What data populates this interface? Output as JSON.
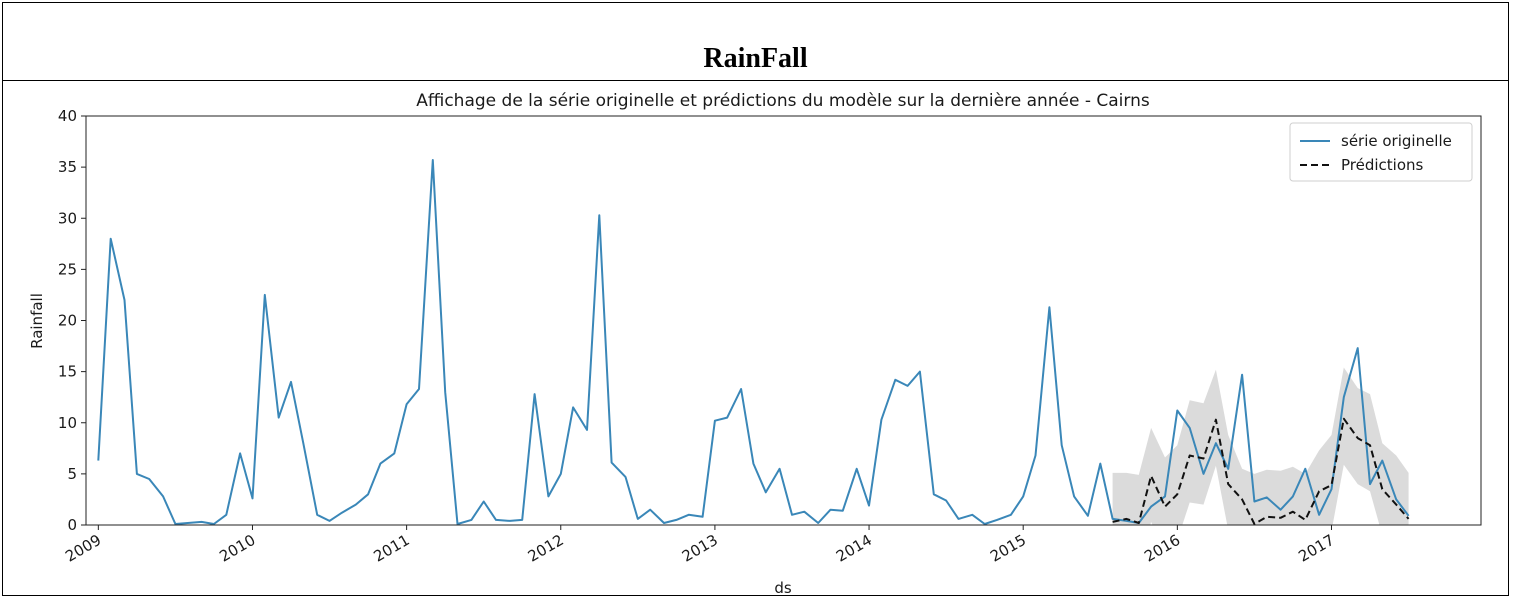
{
  "page": {
    "heading": "RainFall"
  },
  "chart_data": {
    "type": "line",
    "title": "Affichage de la série originelle et prédictions du modèle sur la dernière année - Cairns",
    "xlabel": "ds",
    "ylabel": "Rainfall",
    "ylim": [
      0,
      40
    ],
    "xlim": [
      2008.92,
      2017.97
    ],
    "yticks": [
      0,
      5,
      10,
      15,
      20,
      25,
      30,
      35,
      40
    ],
    "xticks": [
      2009,
      2010,
      2011,
      2012,
      2013,
      2014,
      2015,
      2016,
      2017
    ],
    "xtick_labels": [
      "2009",
      "2010",
      "2011",
      "2012",
      "2013",
      "2014",
      "2015",
      "2016",
      "2017"
    ],
    "legend_position": "top-right",
    "grid": false,
    "colors": {
      "original": "#3a87b8",
      "prediction": "#111111",
      "band": "#bdbdbd"
    },
    "series": [
      {
        "name": "série originelle",
        "style": "solid",
        "x": [
          2009.0,
          2009.08,
          2009.17,
          2009.25,
          2009.33,
          2009.42,
          2009.5,
          2009.58,
          2009.67,
          2009.75,
          2009.83,
          2009.92,
          2010.0,
          2010.08,
          2010.17,
          2010.25,
          2010.33,
          2010.42,
          2010.5,
          2010.58,
          2010.67,
          2010.75,
          2010.83,
          2010.92,
          2011.0,
          2011.08,
          2011.17,
          2011.25,
          2011.33,
          2011.42,
          2011.5,
          2011.58,
          2011.67,
          2011.75,
          2011.83,
          2011.92,
          2012.0,
          2012.08,
          2012.17,
          2012.25,
          2012.33,
          2012.42,
          2012.5,
          2012.58,
          2012.67,
          2012.75,
          2012.83,
          2012.92,
          2013.0,
          2013.08,
          2013.17,
          2013.25,
          2013.33,
          2013.42,
          2013.5,
          2013.58,
          2013.67,
          2013.75,
          2013.83,
          2013.92,
          2014.0,
          2014.08,
          2014.17,
          2014.25,
          2014.33,
          2014.42,
          2014.5,
          2014.58,
          2014.67,
          2014.75,
          2014.83,
          2014.92,
          2015.0,
          2015.08,
          2015.17,
          2015.25,
          2015.33,
          2015.42,
          2015.5,
          2015.58,
          2015.67,
          2015.75,
          2015.83,
          2015.92,
          2016.0,
          2016.08,
          2016.17,
          2016.25,
          2016.33,
          2016.42,
          2016.5,
          2016.58,
          2016.67,
          2016.75,
          2016.83,
          2016.92,
          2017.0,
          2017.08,
          2017.17,
          2017.25,
          2017.33,
          2017.42,
          2017.5
        ],
        "values": [
          6.3,
          28.0,
          22.0,
          5.0,
          4.5,
          2.8,
          0.1,
          0.2,
          0.3,
          0.1,
          1.0,
          7.0,
          2.6,
          22.5,
          10.5,
          14.0,
          8.0,
          1.0,
          0.4,
          1.2,
          2.0,
          3.0,
          6.0,
          7.0,
          11.8,
          13.3,
          35.7,
          13.0,
          0.1,
          0.5,
          2.3,
          0.5,
          0.4,
          0.5,
          12.8,
          2.8,
          5.0,
          11.5,
          9.3,
          30.3,
          6.1,
          4.7,
          0.6,
          1.5,
          0.2,
          0.5,
          1.0,
          0.8,
          10.2,
          10.5,
          13.3,
          6.0,
          3.2,
          5.5,
          1.0,
          1.3,
          0.2,
          1.5,
          1.4,
          5.5,
          1.9,
          10.3,
          14.2,
          13.6,
          15.0,
          3.0,
          2.4,
          0.6,
          1.0,
          0.1,
          0.5,
          1.0,
          2.8,
          6.8,
          21.3,
          7.8,
          2.8,
          0.9,
          6.0,
          0.6,
          0.4,
          0.2,
          1.8,
          2.8,
          11.2,
          9.5,
          5.0,
          8.0,
          5.5,
          14.7,
          2.3,
          2.7,
          1.5,
          2.8,
          5.5,
          1.0,
          3.5,
          12.5,
          17.3,
          4.0,
          6.3,
          2.5,
          0.9
        ]
      },
      {
        "name": "Prédictions",
        "style": "dashed",
        "x": [
          2015.58,
          2015.67,
          2015.75,
          2015.83,
          2015.92,
          2016.0,
          2016.08,
          2016.17,
          2016.25,
          2016.33,
          2016.42,
          2016.5,
          2016.58,
          2016.67,
          2016.75,
          2016.83,
          2016.92,
          2017.0,
          2017.08,
          2017.17,
          2017.25,
          2017.33,
          2017.42,
          2017.5
        ],
        "values": [
          0.3,
          0.6,
          0.2,
          4.8,
          1.8,
          3.0,
          6.8,
          6.5,
          10.3,
          4.0,
          2.5,
          0.1,
          0.8,
          0.7,
          1.3,
          0.5,
          3.3,
          3.9,
          10.4,
          8.5,
          7.8,
          3.5,
          2.0,
          0.6
        ],
        "band_lower": [
          -4.2,
          -4.0,
          -4.3,
          0.3,
          -2.7,
          -1.5,
          2.2,
          2.0,
          5.8,
          -0.5,
          -2.0,
          -4.4,
          -3.7,
          -3.8,
          -3.2,
          -4.0,
          -1.2,
          -0.6,
          5.9,
          4.0,
          3.3,
          -1.0,
          -2.5,
          -3.9
        ],
        "band_upper": [
          5.1,
          5.1,
          4.9,
          9.5,
          6.6,
          7.8,
          12.2,
          11.9,
          15.2,
          8.8,
          5.5,
          5.0,
          5.4,
          5.3,
          5.7,
          5.0,
          7.3,
          8.8,
          15.4,
          13.4,
          12.8,
          8.0,
          6.8,
          5.1
        ]
      }
    ]
  }
}
